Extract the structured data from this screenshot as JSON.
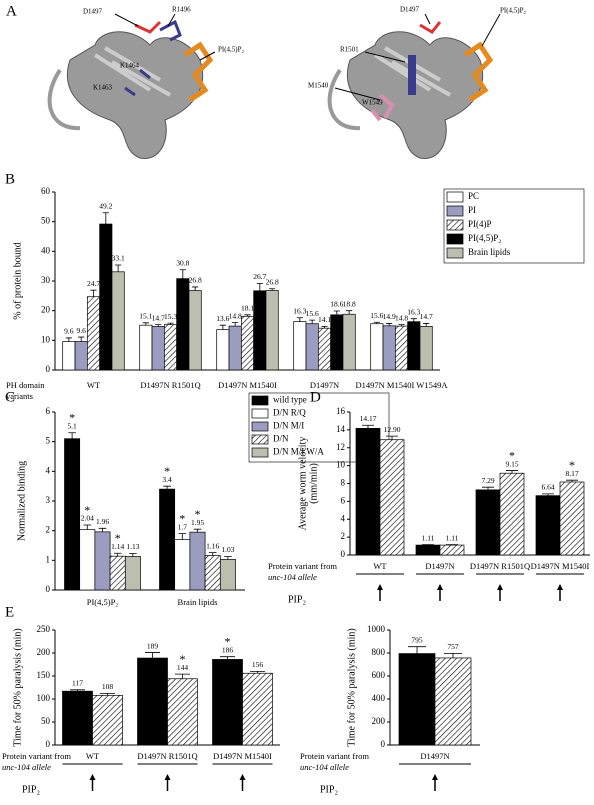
{
  "structure": {
    "panel": "A",
    "left_labels": [
      "D1497",
      "R1496",
      "PI(4,5)P₂",
      "K1464",
      "K1463"
    ],
    "right_labels": [
      "R1501",
      "D1497",
      "PI(4,5)P₂",
      "M1540",
      "W1549"
    ]
  },
  "chart_data": [
    {
      "type": "bar",
      "panel": "B",
      "y_label": "% of protein bound",
      "x_label": [
        "PH domain",
        "variants"
      ],
      "categories": [
        "WT",
        "D1497N R1501Q",
        "D1497N M1540I",
        "D1497N",
        "D1497N M1540I W1549A"
      ],
      "ylim": [
        0,
        60
      ],
      "yticks": [
        0,
        10,
        20,
        30,
        40,
        50,
        60
      ],
      "legend": "upper right",
      "series": [
        {
          "name": "PC",
          "color": "#ffffff",
          "values": [
            9.6,
            15.1,
            13.6,
            16.3,
            15.6
          ],
          "errors": [
            1.2,
            0.8,
            1.5,
            1.3,
            0.5
          ]
        },
        {
          "name": "PI",
          "color": "#9b9cc0",
          "values": [
            9.6,
            14.7,
            14.8,
            15.6,
            14.9
          ],
          "errors": [
            1.5,
            0.6,
            1.2,
            1.2,
            0.8
          ]
        },
        {
          "name": "PI(4)P",
          "color": "#ffffff",
          "pattern": "hatch",
          "values": [
            24.7,
            15.3,
            18.1,
            14.1,
            14.8
          ],
          "errors": [
            2.2,
            0.5,
            0.5,
            0.6,
            0.5
          ]
        },
        {
          "name": "PI(4,5)P₂",
          "color": "#000000",
          "values": [
            49.2,
            30.8,
            26.7,
            18.6,
            16.3
          ],
          "errors": [
            3.8,
            3,
            2.5,
            1.3,
            1
          ]
        },
        {
          "name": "Brain lipids",
          "color": "#bcbfb0",
          "values": [
            33.1,
            26.8,
            26.8,
            18.8,
            14.7
          ],
          "errors": [
            2.3,
            1.2,
            0.6,
            1.2,
            1
          ]
        }
      ]
    },
    {
      "type": "bar",
      "panel": "C",
      "y_label": "Normalized binding",
      "categories": [
        "PI(4,5)P₂",
        "Brain lipids"
      ],
      "ylim": [
        0,
        6
      ],
      "yticks": [
        0,
        1,
        2,
        3,
        4,
        5,
        6
      ],
      "legend": "upper right",
      "series": [
        {
          "name": "wild type",
          "color": "#000000",
          "values": [
            5.1,
            3.4
          ],
          "errors": [
            0.2,
            0.1
          ],
          "markers": [
            "*",
            "*"
          ]
        },
        {
          "name": "D/N R/Q",
          "color": "#ffffff",
          "values": [
            2.04,
            1.7
          ],
          "errors": [
            0.15,
            0.2
          ],
          "markers": [
            "*",
            "*"
          ]
        },
        {
          "name": "D/N M/I",
          "color": "#9b9cc0",
          "values": [
            1.96,
            1.95
          ],
          "errors": [
            0.12,
            0.1
          ],
          "markers": [
            null,
            "*"
          ]
        },
        {
          "name": "D/N",
          "color": "#ffffff",
          "pattern": "hatch",
          "values": [
            1.14,
            1.16
          ],
          "errors": [
            0.1,
            0.1
          ],
          "markers": [
            "*",
            null
          ]
        },
        {
          "name": "D/N M/I W/A",
          "color": "#bcbfb0",
          "values": [
            1.13,
            1.03
          ],
          "errors": [
            0.1,
            0.1
          ],
          "markers": [
            null,
            null
          ]
        }
      ]
    },
    {
      "type": "bar",
      "panel": "D",
      "y_label": [
        "Average worm velocity",
        "(mm/min)"
      ],
      "x_label": [
        "Protein variant from",
        "unc-104 allele"
      ],
      "pip_label": "PIP₂",
      "categories": [
        "WT",
        "D1497N",
        "D1497N R1501Q",
        "D1497N M1540I"
      ],
      "ylim": [
        0,
        16
      ],
      "yticks": [
        0,
        2,
        4,
        6,
        8,
        10,
        12,
        14,
        16
      ],
      "series": [
        {
          "color": "#000000",
          "values": [
            14.17,
            1.11,
            7.29,
            6.64
          ],
          "errors": [
            0.35,
            0.05,
            0.3,
            0.2
          ]
        },
        {
          "color": "#ffffff",
          "pattern": "hatch",
          "values": [
            12.9,
            1.11,
            9.15,
            8.17
          ],
          "value_labels": [
            "12.90",
            "1.11",
            "9.15",
            "8.17"
          ],
          "errors": [
            0.4,
            0.05,
            0.3,
            0.2
          ],
          "markers": [
            null,
            null,
            "*",
            "*"
          ]
        }
      ]
    },
    {
      "type": "bar",
      "panel": "E",
      "y_label": "Time for 50% paralysis (min)",
      "x_label": [
        "Protein variant from",
        "unc-104 allele"
      ],
      "pip_label": "PIP₂",
      "categories": [
        "WT",
        "D1497N R1501Q",
        "D1497N M1540I"
      ],
      "ylim": [
        0,
        250
      ],
      "yticks": [
        0,
        50,
        100,
        150,
        200,
        250
      ],
      "series": [
        {
          "color": "#000000",
          "values": [
            117,
            189,
            186
          ],
          "errors": [
            3,
            12,
            6
          ],
          "markers": [
            null,
            null,
            "*"
          ]
        },
        {
          "color": "#ffffff",
          "pattern": "hatch",
          "values": [
            108,
            144,
            156
          ],
          "errors": [
            4,
            10,
            4
          ],
          "markers": [
            null,
            "*",
            null
          ]
        }
      ]
    },
    {
      "type": "bar",
      "y_label": "Time for 50% paralysis (min)",
      "x_label": [
        "Protein variant from",
        "unc-104 allele"
      ],
      "pip_label": "PIP₂",
      "categories": [
        "D1497N"
      ],
      "ylim": [
        0,
        1000
      ],
      "yticks": [
        0,
        200,
        400,
        600,
        800,
        1000
      ],
      "series": [
        {
          "color": "#000000",
          "values": [
            795
          ],
          "errors": [
            60
          ]
        },
        {
          "color": "#ffffff",
          "pattern": "hatch",
          "values": [
            757
          ],
          "errors": [
            40
          ]
        }
      ]
    }
  ]
}
